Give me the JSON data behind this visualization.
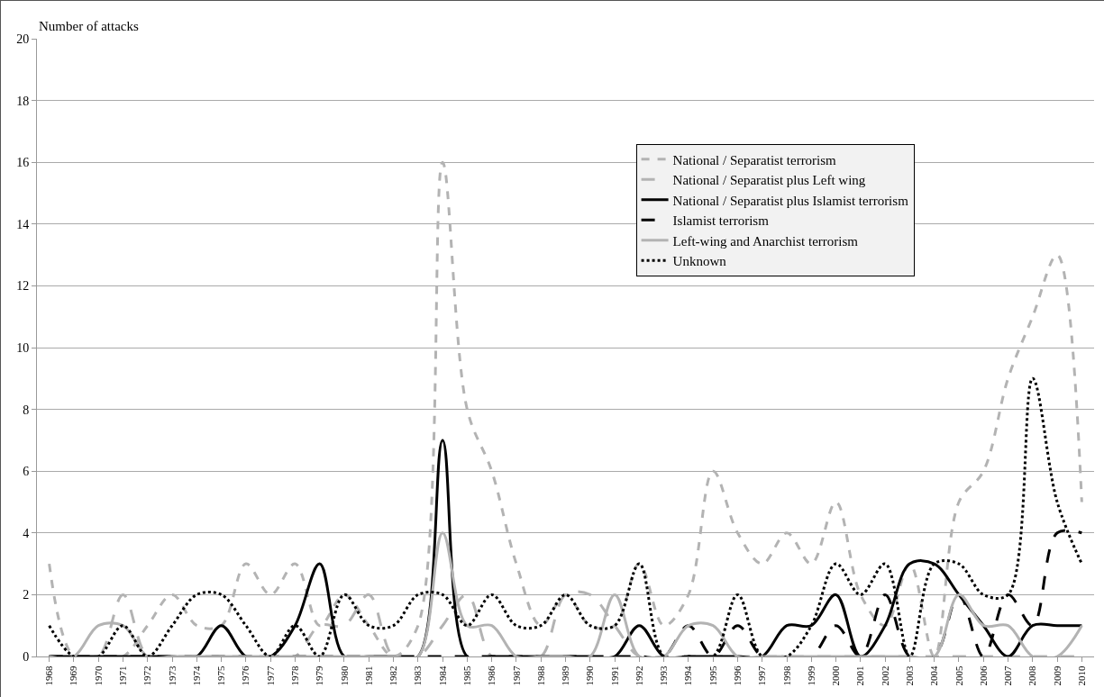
{
  "chart_data": {
    "type": "line",
    "ylabel": "Number of attacks",
    "categories": [
      "1968",
      "1969",
      "1970",
      "1971",
      "1972",
      "1973",
      "1974",
      "1975",
      "1976",
      "1977",
      "1978",
      "1979",
      "1980",
      "1981",
      "1982",
      "1983",
      "1984",
      "1985",
      "1986",
      "1987",
      "1988",
      "1989",
      "1990",
      "1991",
      "1992",
      "1993",
      "1994",
      "1995",
      "1996",
      "1997",
      "1998",
      "1999",
      "2000",
      "2001",
      "2002",
      "2003",
      "2004",
      "2005",
      "2006",
      "2007",
      "2008",
      "2009",
      "2010"
    ],
    "series": [
      {
        "name": "National / Separatist terrorism",
        "color": "#b3b3b3",
        "line_style": "dashed",
        "values": [
          3,
          0,
          0,
          0,
          1,
          2,
          1,
          1,
          3,
          2,
          3,
          1,
          2,
          1,
          0,
          1,
          16,
          8,
          6,
          3,
          1,
          2,
          1,
          1,
          3,
          1,
          2,
          6,
          4,
          3,
          4,
          3,
          5,
          2,
          1,
          3,
          0,
          5,
          6,
          9,
          11,
          13,
          5
        ]
      },
      {
        "name": "National / Separatist plus Left wing",
        "color": "#b3b3b3",
        "line_style": "longdash",
        "values": [
          0,
          0,
          0,
          2,
          0,
          0,
          0,
          0,
          0,
          0,
          0,
          1,
          1,
          2,
          0,
          0,
          1,
          2,
          0,
          0,
          0,
          2,
          2,
          1,
          0,
          0,
          0,
          0,
          0,
          0,
          0,
          0,
          0,
          0,
          0,
          0,
          0,
          0,
          0,
          0,
          0,
          0,
          0
        ]
      },
      {
        "name": "National / Separatist plus Islamist terrorism",
        "color": "#000000",
        "line_style": "solid",
        "values": [
          0,
          0,
          0,
          0,
          0,
          0,
          0,
          1,
          0,
          0,
          1,
          3,
          0,
          0,
          0,
          0,
          7,
          0,
          0,
          0,
          0,
          0,
          0,
          0,
          1,
          0,
          0,
          0,
          0,
          0,
          1,
          1,
          2,
          0,
          1,
          3,
          3,
          2,
          1,
          0,
          1,
          1,
          1
        ]
      },
      {
        "name": "Islamist terrorism",
        "color": "#000000",
        "line_style": "longdash",
        "values": [
          0,
          0,
          0,
          0,
          0,
          0,
          0,
          0,
          0,
          0,
          0,
          0,
          0,
          0,
          0,
          0,
          0,
          0,
          0,
          0,
          0,
          0,
          0,
          0,
          0,
          0,
          1,
          0,
          1,
          0,
          0,
          0,
          1,
          0,
          2,
          0,
          0,
          2,
          0,
          2,
          1,
          4,
          4
        ]
      },
      {
        "name": "Left-wing and Anarchist terrorism",
        "color": "#b3b3b3",
        "line_style": "solid",
        "values": [
          0,
          0,
          1,
          1,
          0,
          0,
          0,
          0,
          0,
          0,
          0,
          0,
          0,
          0,
          0,
          0,
          4,
          1,
          1,
          0,
          0,
          0,
          0,
          2,
          0,
          0,
          1,
          1,
          0,
          0,
          0,
          0,
          0,
          0,
          0,
          0,
          0,
          2,
          1,
          1,
          0,
          0,
          1
        ]
      },
      {
        "name": "Unknown",
        "color": "#000000",
        "line_style": "dotted",
        "values": [
          1,
          0,
          0,
          1,
          0,
          1,
          2,
          2,
          1,
          0,
          1,
          0,
          2,
          1,
          1,
          2,
          2,
          1,
          2,
          1,
          1,
          2,
          1,
          1,
          3,
          0,
          0,
          0,
          2,
          0,
          0,
          1,
          3,
          2,
          3,
          0,
          3,
          3,
          2,
          2,
          9,
          5,
          3
        ]
      }
    ],
    "ylim": [
      0,
      20
    ],
    "yticks": [
      0,
      2,
      4,
      6,
      8,
      10,
      12,
      14,
      16,
      18,
      20
    ],
    "grid": "y",
    "legend": "top right",
    "marker": "none"
  }
}
